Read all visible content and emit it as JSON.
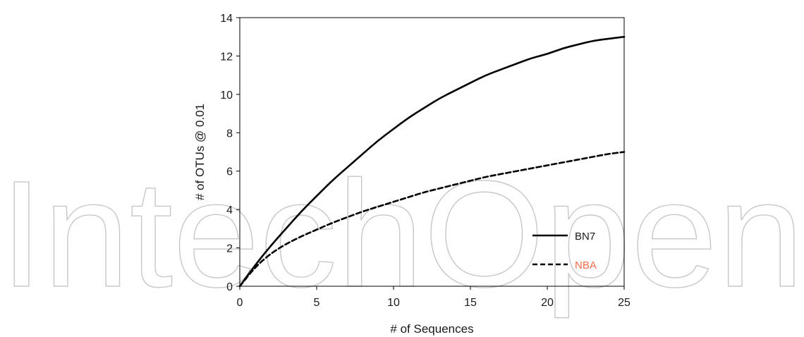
{
  "watermark": {
    "text": "IntechOpen"
  },
  "chart_data": {
    "type": "line",
    "title": "",
    "xlabel": "# of Sequences",
    "ylabel": "# of OTUs @ 0.01",
    "xlim": [
      0,
      25
    ],
    "ylim": [
      0,
      14
    ],
    "xticks": [
      0,
      5,
      10,
      15,
      20,
      25
    ],
    "yticks": [
      0,
      2,
      4,
      6,
      8,
      10,
      12,
      14
    ],
    "grid": false,
    "legend_position": "bottom-right",
    "series": [
      {
        "name": "BN7",
        "style": "solid",
        "color": "#000000",
        "label_color": "#1a1a1a",
        "x": [
          0,
          1,
          2,
          3,
          4,
          5,
          6,
          7,
          8,
          9,
          10,
          11,
          12,
          13,
          14,
          15,
          16,
          17,
          18,
          19,
          20,
          21,
          22,
          23,
          24,
          25
        ],
        "y": [
          0,
          1.1,
          2.1,
          3.0,
          3.9,
          4.7,
          5.5,
          6.2,
          6.9,
          7.6,
          8.2,
          8.8,
          9.3,
          9.8,
          10.2,
          10.6,
          11.0,
          11.3,
          11.6,
          11.9,
          12.1,
          12.4,
          12.6,
          12.8,
          12.9,
          13.0
        ]
      },
      {
        "name": "NBA",
        "style": "dashed",
        "color": "#000000",
        "label_color": "#f26b4b",
        "x": [
          0,
          1,
          2,
          3,
          4,
          5,
          6,
          7,
          8,
          9,
          10,
          11,
          12,
          13,
          14,
          15,
          16,
          17,
          18,
          19,
          20,
          21,
          22,
          23,
          24,
          25
        ],
        "y": [
          0,
          1.0,
          1.7,
          2.2,
          2.6,
          2.95,
          3.3,
          3.6,
          3.9,
          4.15,
          4.4,
          4.65,
          4.9,
          5.1,
          5.3,
          5.5,
          5.7,
          5.85,
          6.0,
          6.15,
          6.3,
          6.45,
          6.6,
          6.75,
          6.9,
          7.0
        ]
      }
    ]
  }
}
